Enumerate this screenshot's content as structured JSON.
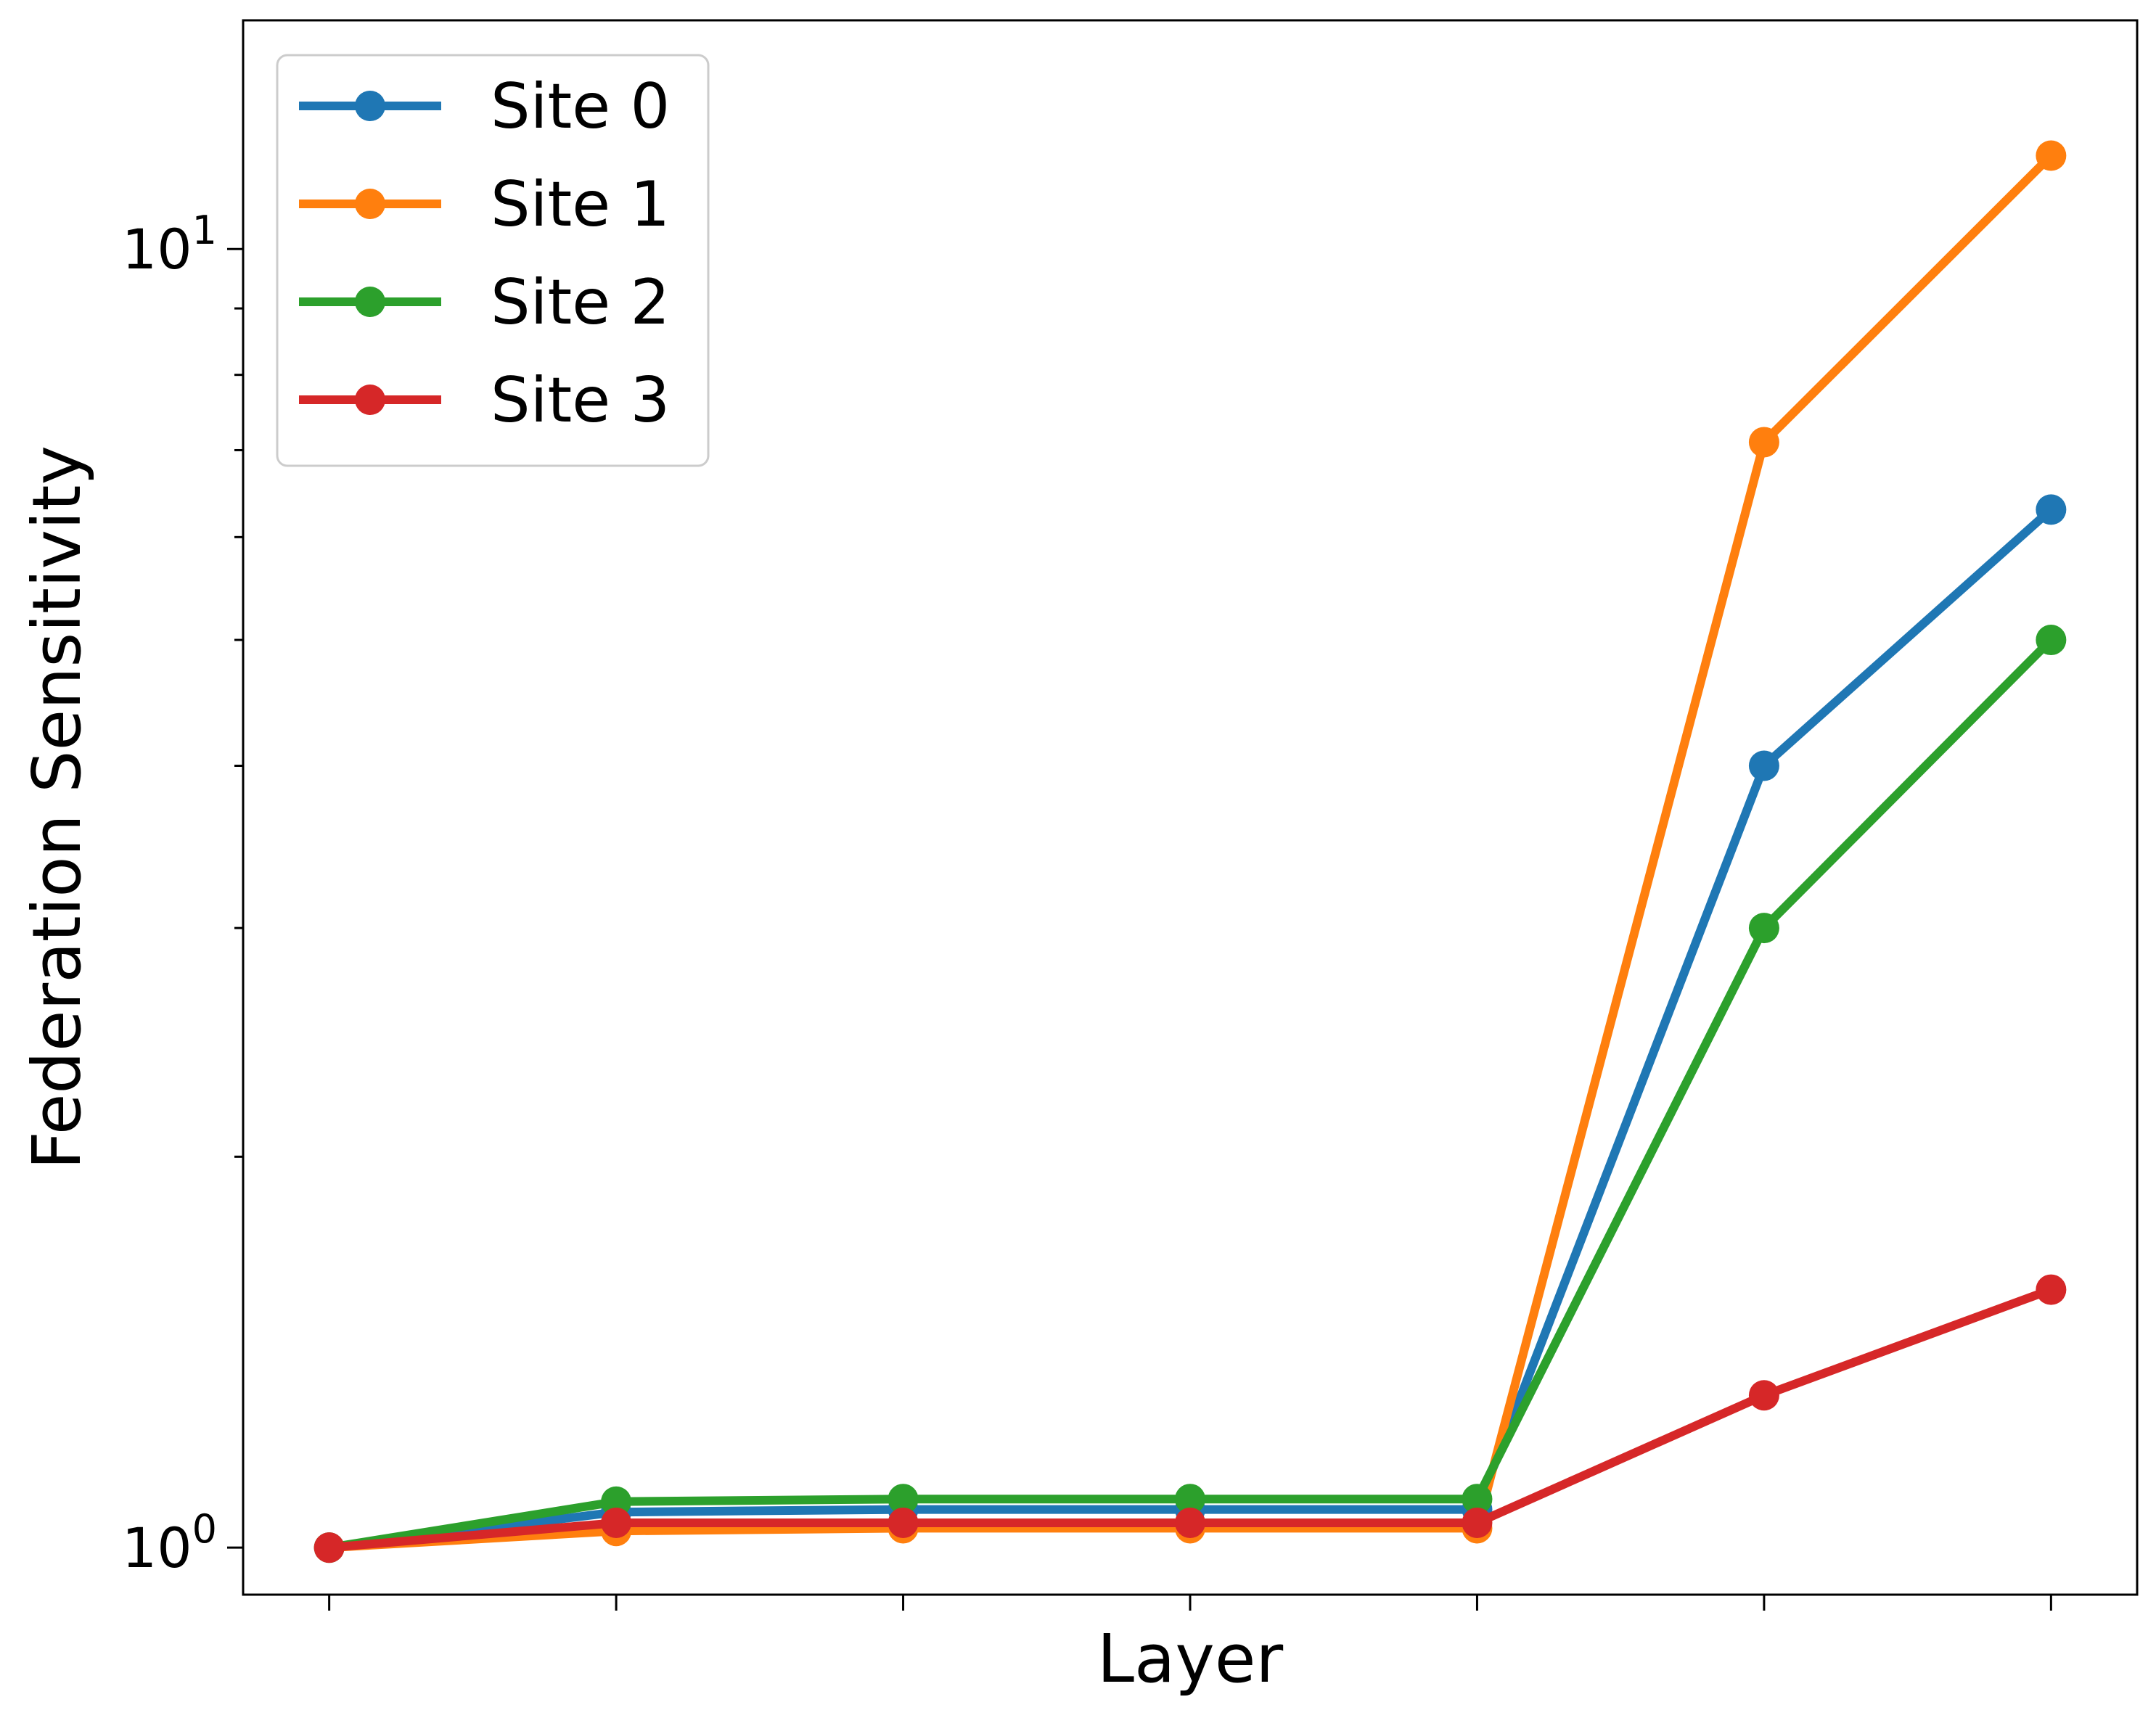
{
  "chart_data": {
    "type": "line",
    "title": "",
    "xlabel": "Layer",
    "ylabel": "Federation Sensitivity",
    "yscale": "log",
    "ylim": [
      0.92,
      15.0
    ],
    "xlim": [
      -0.3,
      6.3
    ],
    "x": [
      0,
      1,
      2,
      3,
      4,
      5,
      6
    ],
    "x_tick_labels": [
      "",
      "",
      "",
      "",
      "",
      "",
      ""
    ],
    "y_major_ticks": [
      {
        "value": 1,
        "base": "10",
        "exp": "0"
      },
      {
        "value": 10,
        "base": "10",
        "exp": "1"
      }
    ],
    "y_minor_ticks": [
      2,
      3,
      4,
      5,
      6,
      7,
      8,
      9
    ],
    "legend_position": "upper-left",
    "grid": false,
    "series": [
      {
        "name": "Site 0",
        "color": "#1f77b4",
        "values": [
          1.0,
          1.065,
          1.07,
          1.07,
          1.07,
          4.0,
          6.3
        ]
      },
      {
        "name": "Site 1",
        "color": "#ff7f0e",
        "values": [
          1.0,
          1.03,
          1.035,
          1.035,
          1.035,
          7.1,
          11.8
        ]
      },
      {
        "name": "Site 2",
        "color": "#2ca02c",
        "values": [
          1.0,
          1.085,
          1.09,
          1.09,
          1.09,
          3.0,
          5.0
        ]
      },
      {
        "name": "Site 3",
        "color": "#d62728",
        "values": [
          1.0,
          1.045,
          1.045,
          1.045,
          1.045,
          1.31,
          1.58
        ]
      }
    ]
  }
}
